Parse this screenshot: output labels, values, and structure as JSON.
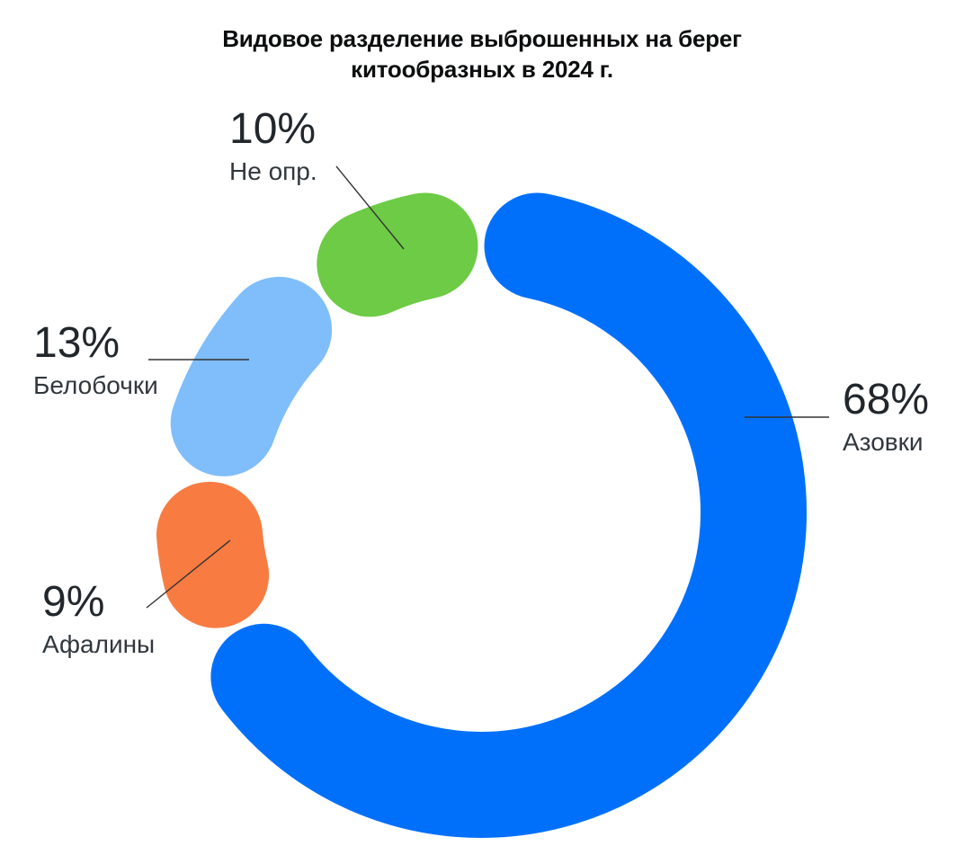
{
  "title": {
    "text": "Видовое разделение выброшенных на берег китообразных в 2024 г.",
    "lines": [
      "Видовое разделение выброшенных на берег",
      "китообразных в 2024 г."
    ]
  },
  "chart_data": {
    "type": "pie",
    "subtype": "donut",
    "title": "Видовое разделение выброшенных на берег китообразных в 2024 г.",
    "unit": "%",
    "direction": "clockwise",
    "start_angle_deg": 0,
    "labels_style": "outside-with-leader-lines",
    "background": "#FFFFFF",
    "segments": [
      {
        "label": "Азовки",
        "value": 68,
        "display": "68%",
        "color": "#0070FB"
      },
      {
        "label": "Афалины",
        "value": 9,
        "display": "9%",
        "color": "#F87C41"
      },
      {
        "label": "Белобочки",
        "value": 13,
        "display": "13%",
        "color": "#7FBEFA"
      },
      {
        "label": "Не опр.",
        "value": 10,
        "display": "10%",
        "color": "#6DCB45"
      }
    ]
  },
  "styles": {
    "title_color": "#0C0D0E",
    "percent_color": "#22272C",
    "label_color": "#31373D",
    "leader_line_color": "#333333"
  }
}
